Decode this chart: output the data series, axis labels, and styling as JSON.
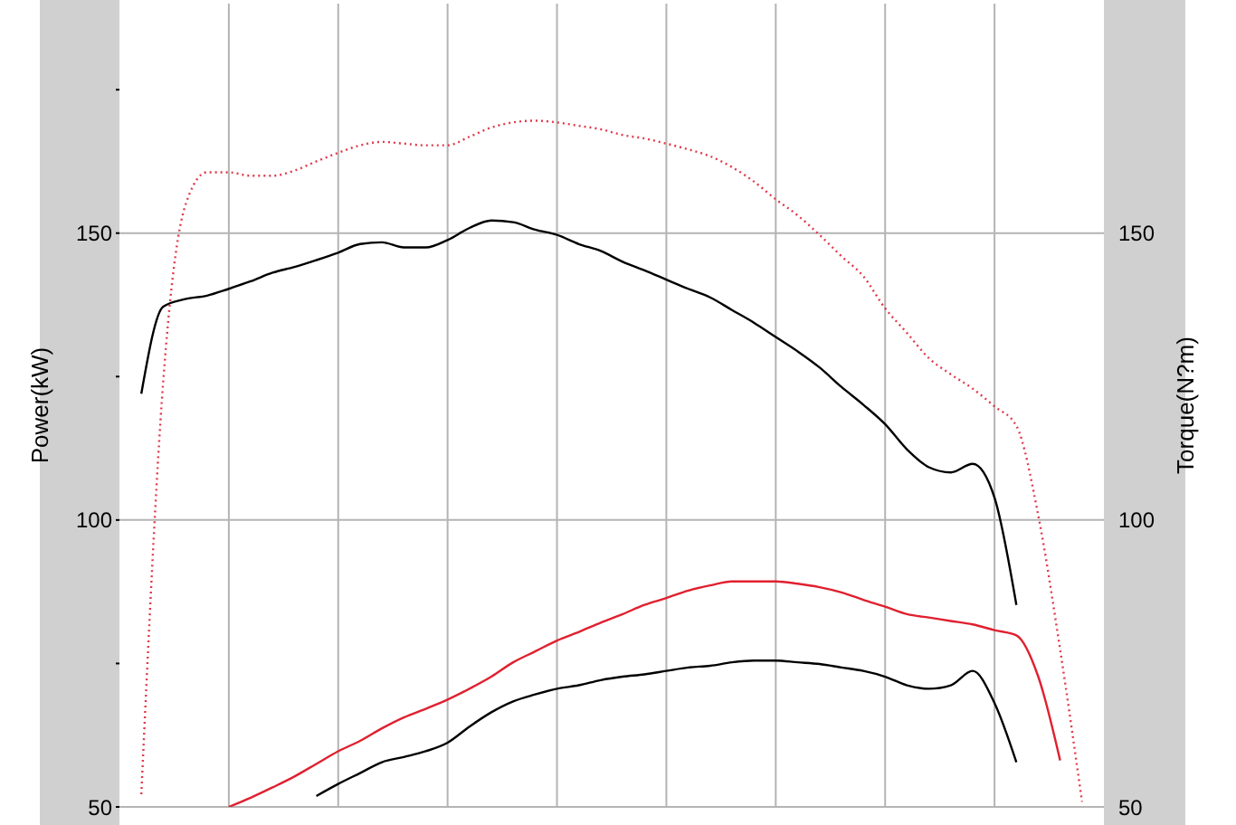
{
  "chart_data": {
    "type": "line",
    "ylabel": "Power(kW)",
    "y2label": "Torque(N?m)",
    "categories": [
      null,
      null,
      null,
      null,
      null,
      null,
      null,
      null,
      null,
      null,
      null,
      null,
      null,
      null,
      null,
      null,
      null,
      null,
      null,
      null,
      null,
      null,
      null,
      null,
      null,
      null,
      null,
      null,
      null,
      null,
      null,
      null,
      null,
      null,
      null,
      null,
      null,
      null,
      null,
      null,
      null,
      null,
      null,
      null,
      null,
      null
    ],
    "series": [
      {
        "color": "#000000",
        "axis": "y2",
        "line_style": "solid",
        "values": [
          null,
          122.0,
          137.2,
          138.5,
          139.1,
          140.3,
          141.6,
          143.1,
          144.1,
          145.3,
          146.6,
          148.1,
          148.4,
          147.5,
          147.5,
          148.8,
          150.9,
          152.2,
          151.9,
          150.6,
          149.7,
          148.1,
          146.9,
          145.0,
          143.5,
          141.9,
          140.3,
          138.8,
          136.6,
          134.4,
          131.9,
          129.4,
          126.6,
          123.2,
          120.1,
          116.7,
          112.3,
          109.2,
          108.3,
          109.8,
          103.9,
          85.2,
          null,
          null,
          null,
          null
        ]
      },
      {
        "color": "#e03a4a",
        "axis": "y2",
        "line_style": "dotted",
        "values": [
          null,
          52.2,
          124.1,
          154.7,
          160.6,
          160.6,
          160.0,
          160.0,
          160.9,
          162.5,
          164.0,
          165.3,
          165.9,
          165.6,
          165.3,
          165.3,
          166.8,
          168.4,
          169.3,
          169.6,
          169.3,
          168.7,
          168.1,
          167.1,
          166.5,
          165.6,
          164.6,
          163.4,
          161.5,
          159.0,
          155.9,
          153.1,
          149.7,
          146.0,
          142.5,
          136.9,
          132.6,
          128.2,
          125.4,
          122.9,
          119.8,
          116.4,
          100.8,
          77.4,
          50.9,
          null
        ]
      },
      {
        "color": "#000000",
        "line_style": "solid",
        "values": [
          null,
          null,
          null,
          null,
          null,
          null,
          null,
          null,
          null,
          51.9,
          54.0,
          55.9,
          57.8,
          58.7,
          59.7,
          61.2,
          64.0,
          66.5,
          68.4,
          69.6,
          70.6,
          71.2,
          72.1,
          72.7,
          73.1,
          73.7,
          74.3,
          74.6,
          75.2,
          75.5,
          75.5,
          75.2,
          74.9,
          74.3,
          73.7,
          72.7,
          71.2,
          70.6,
          71.2,
          73.7,
          68.1,
          57.8,
          null,
          null,
          null,
          null
        ]
      },
      {
        "color": "#e0202f",
        "line_style": "solid",
        "values": [
          null,
          null,
          null,
          null,
          null,
          50.0,
          51.6,
          53.4,
          55.3,
          57.5,
          59.7,
          61.5,
          63.7,
          65.6,
          67.1,
          68.7,
          70.6,
          72.7,
          75.2,
          77.1,
          79.0,
          80.5,
          82.1,
          83.6,
          85.2,
          86.4,
          87.7,
          88.6,
          89.3,
          89.3,
          89.3,
          88.9,
          88.3,
          87.4,
          86.1,
          84.9,
          83.6,
          83.0,
          82.4,
          81.8,
          80.8,
          79.9,
          72.7,
          58.1,
          null,
          null
        ]
      }
    ],
    "ylim": [
      50,
      190
    ],
    "yticks": [
      50,
      {
        "value": 75,
        "label": null
      },
      100,
      {
        "value": 125,
        "label": null
      },
      150,
      {
        "value": 175,
        "label": null
      }
    ],
    "y2lim": [
      50,
      190
    ],
    "y2ticks": [
      50,
      100,
      150
    ],
    "tick_labels": "y",
    "grid": true,
    "marker": "none",
    "legend": false
  }
}
